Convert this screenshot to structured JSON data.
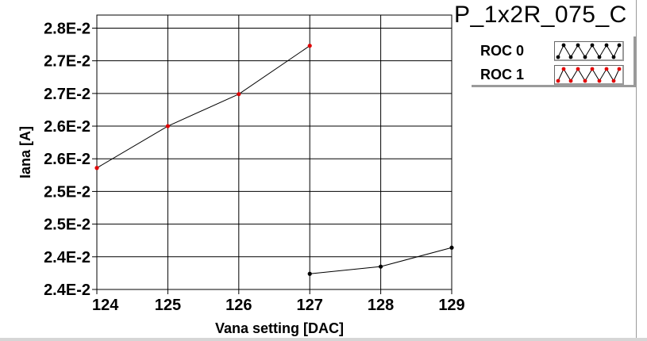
{
  "chart_data": {
    "type": "line",
    "title": "P_1x2R_075_C",
    "xlabel": "Vana setting [DAC]",
    "ylabel": "Iana [A]",
    "xlim": [
      124,
      129
    ],
    "ylim": [
      0.0237,
      0.0279
    ],
    "x_ticks": [
      124,
      125,
      126,
      127,
      128,
      129
    ],
    "x_tick_labels": [
      "124",
      "125",
      "126",
      "127",
      "128",
      "129"
    ],
    "y_ticks": [
      0.0237,
      0.0242,
      0.0247,
      0.0252,
      0.0257,
      0.0262,
      0.0267,
      0.0272,
      0.0277
    ],
    "y_tick_labels": [
      "2.4E-2",
      "2.4E-2",
      "2.5E-2",
      "2.5E-2",
      "2.6E-2",
      "2.6E-2",
      "2.7E-2",
      "2.7E-2",
      "2.8E-2"
    ],
    "grid": true,
    "legend_position": "top-right",
    "series": [
      {
        "name": "ROC 0",
        "color": "#000000",
        "x": [
          127,
          128,
          129
        ],
        "y": [
          0.02394,
          0.02405,
          0.02434
        ]
      },
      {
        "name": "ROC 1",
        "color": "#e00000",
        "x": [
          124,
          125,
          126,
          127
        ],
        "y": [
          0.02556,
          0.0262,
          0.02669,
          0.02743
        ]
      }
    ]
  }
}
